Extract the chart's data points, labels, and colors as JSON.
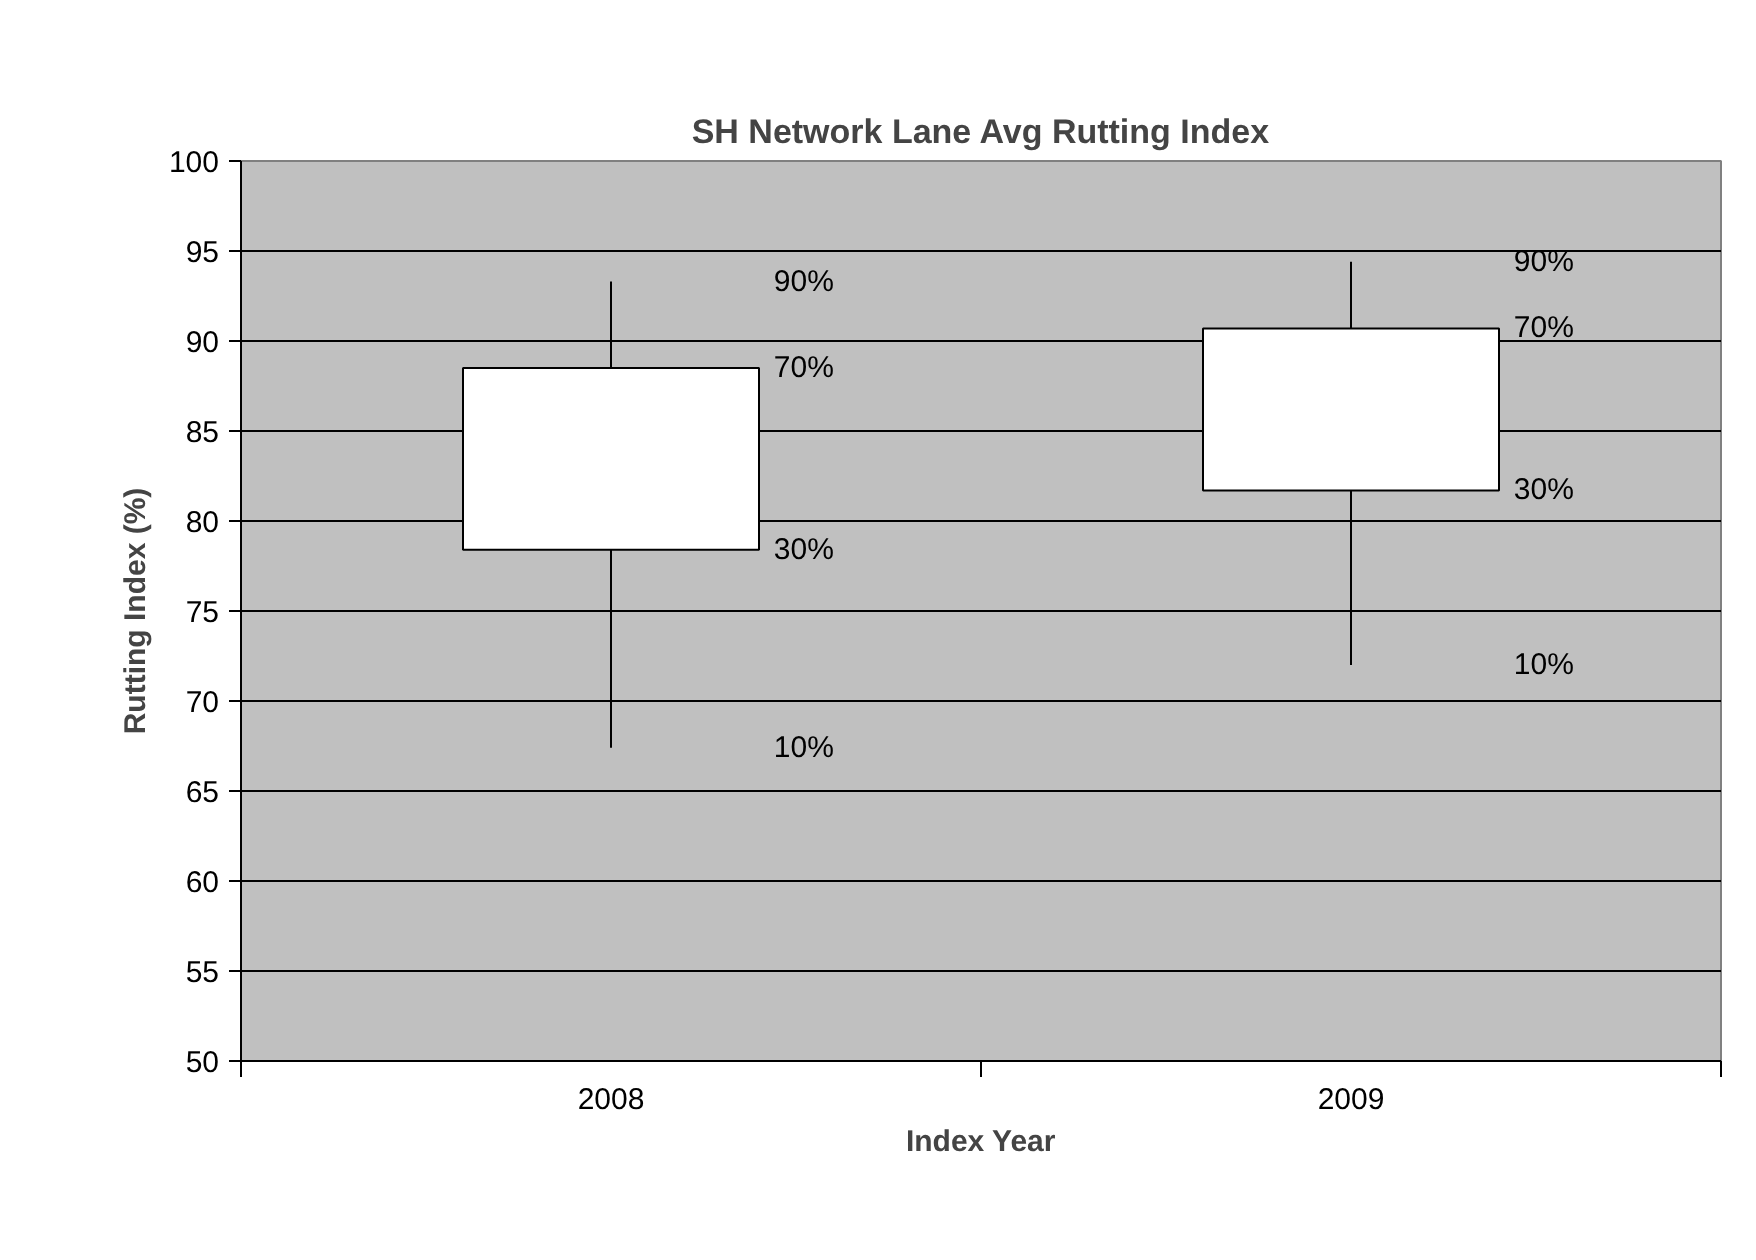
{
  "chart_data": {
    "type": "candlestick",
    "title": "SH Network Lane Avg Rutting Index",
    "xlabel": "Index Year",
    "ylabel": "Rutting Index (%)",
    "categories": [
      "2008",
      "2009"
    ],
    "ohlc": [
      [
        78.4,
        93.3,
        67.4,
        88.5
      ],
      [
        81.7,
        94.4,
        72.0,
        90.7
      ]
    ],
    "color": "#ffffff",
    "ylim": [
      50,
      100
    ],
    "yticks": [
      50,
      55,
      60,
      65,
      70,
      75,
      80,
      85,
      90,
      95,
      100
    ],
    "grid": "y",
    "annotations": [
      "90%",
      "70%",
      "30%",
      "10%",
      "90%",
      "70%",
      "30%",
      "10%"
    ]
  }
}
